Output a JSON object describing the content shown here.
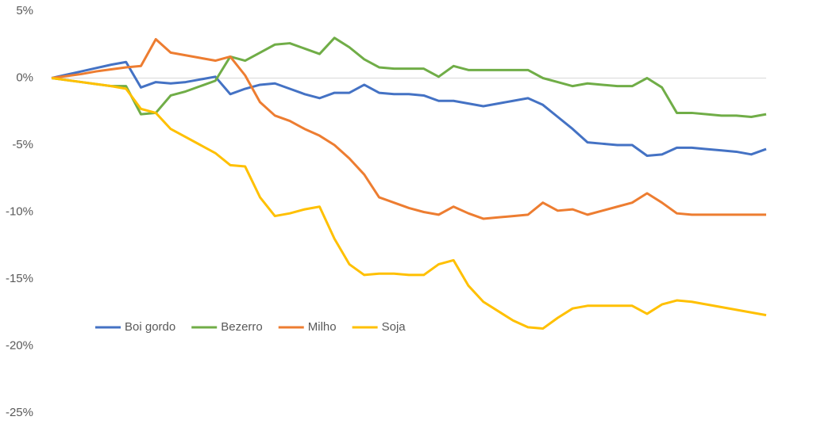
{
  "chart_data": {
    "type": "line",
    "categories": [
      null,
      null,
      null,
      null,
      null,
      null,
      null,
      null,
      null,
      null,
      null,
      null,
      null,
      null,
      null,
      null,
      null,
      null,
      null,
      null,
      null,
      null,
      null,
      null,
      null,
      null,
      null,
      null,
      null,
      null,
      null,
      null,
      null,
      null,
      null,
      null,
      null,
      null,
      null,
      null,
      null,
      null,
      null,
      null,
      null,
      null,
      null,
      null,
      null
    ],
    "series": [
      {
        "name": "Boi gordo",
        "color": "#4472c4",
        "values": [
          0,
          0.25,
          0.5,
          0.75,
          1.0,
          1.2,
          -0.7,
          -0.3,
          -0.4,
          -0.3,
          -0.1,
          0.1,
          -1.2,
          -0.8,
          -0.5,
          -0.4,
          -0.8,
          -1.2,
          -1.5,
          -1.1,
          -1.1,
          -0.5,
          -1.1,
          -1.2,
          -1.2,
          -1.3,
          -1.7,
          -1.7,
          -1.9,
          -2.1,
          -1.9,
          -1.7,
          -1.5,
          -2.0,
          -2.9,
          -3.8,
          -4.8,
          -4.9,
          -5.0,
          -5.0,
          -5.8,
          -5.7,
          -5.2,
          -5.2,
          -5.3,
          -5.4,
          -5.5,
          -5.7,
          -5.3
        ]
      },
      {
        "name": "Bezerro",
        "color": "#70ad47",
        "values": [
          0,
          -0.15,
          -0.3,
          -0.45,
          -0.6,
          -0.6,
          -2.7,
          -2.6,
          -1.3,
          -1.0,
          -0.6,
          -0.2,
          1.6,
          1.3,
          1.9,
          2.5,
          2.6,
          2.2,
          1.8,
          3.0,
          2.3,
          1.4,
          0.8,
          0.7,
          0.7,
          0.7,
          0.1,
          0.9,
          0.6,
          0.6,
          0.6,
          0.6,
          0.6,
          0,
          -0.3,
          -0.6,
          -0.4,
          -0.5,
          -0.6,
          -0.6,
          0.0,
          -0.7,
          -2.6,
          -2.6,
          -2.7,
          -2.8,
          -2.8,
          -2.9,
          -2.7
        ]
      },
      {
        "name": "Milho",
        "color": "#ed7d31",
        "values": [
          0,
          0.15,
          0.3,
          0.5,
          0.65,
          0.8,
          0.9,
          2.9,
          1.9,
          1.7,
          1.5,
          1.3,
          1.6,
          0.2,
          -1.8,
          -2.8,
          -3.2,
          -3.8,
          -4.3,
          -5.0,
          -6.0,
          -7.2,
          -8.9,
          -9.3,
          -9.7,
          -10.0,
          -10.2,
          -9.6,
          -10.1,
          -10.5,
          -10.4,
          -10.3,
          -10.2,
          -9.3,
          -9.9,
          -9.8,
          -10.2,
          -9.9,
          -9.6,
          -9.3,
          -8.6,
          -9.3,
          -10.1,
          -10.2,
          -10.2,
          -10.2,
          -10.2,
          -10.2,
          -10.2
        ]
      },
      {
        "name": "Soja",
        "color": "#ffc000",
        "values": [
          0,
          -0.15,
          -0.3,
          -0.45,
          -0.6,
          -0.8,
          -2.3,
          -2.6,
          -3.8,
          -4.4,
          -5.0,
          -5.6,
          -6.5,
          -6.6,
          -8.9,
          -10.3,
          -10.1,
          -9.8,
          -9.6,
          -12.0,
          -13.9,
          -14.7,
          -14.6,
          -14.6,
          -14.7,
          -14.7,
          -13.9,
          -13.6,
          -15.5,
          -16.7,
          -17.4,
          -18.1,
          -18.6,
          -18.7,
          -17.9,
          -17.2,
          -17.0,
          -17.0,
          -17.0,
          -17.0,
          -17.6,
          -16.9,
          -16.6,
          -16.7,
          -16.9,
          -17.1,
          -17.3,
          -17.5,
          -17.7
        ]
      }
    ],
    "ylim": [
      -25,
      5
    ],
    "yticks": [
      {
        "value": 5,
        "label": "5%"
      },
      {
        "value": 0,
        "label": "0%"
      },
      {
        "value": -5,
        "label": "-5%"
      },
      {
        "value": -10,
        "label": "-10%"
      },
      {
        "value": -15,
        "label": "-15%"
      },
      {
        "value": -20,
        "label": "-20%"
      },
      {
        "value": -25,
        "label": "-25%"
      }
    ],
    "zero_line": true,
    "legend": "lower-left"
  }
}
